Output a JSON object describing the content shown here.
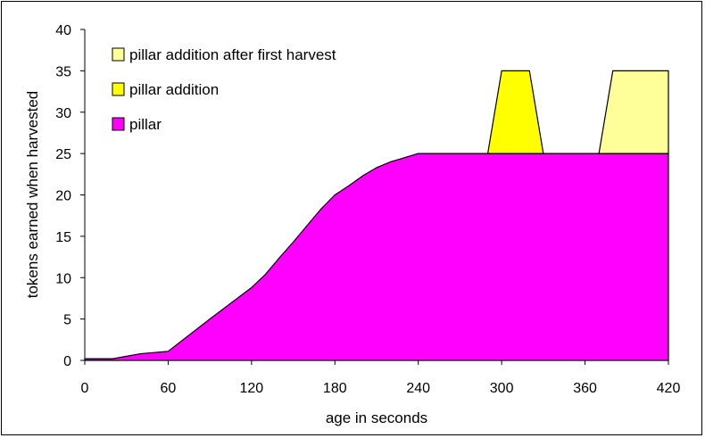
{
  "chart_data": {
    "type": "area",
    "title": "",
    "xlabel": "age in seconds",
    "ylabel": "tokens earned when harvested",
    "xlim": [
      0,
      420
    ],
    "ylim": [
      0,
      40
    ],
    "xticks": [
      0,
      60,
      120,
      180,
      240,
      300,
      360,
      420
    ],
    "yticks": [
      0,
      5,
      10,
      15,
      20,
      25,
      30,
      35,
      40
    ],
    "grid": false,
    "legend_position": "top-left",
    "series": [
      {
        "name": "pillar",
        "color": "#ff00ff",
        "points": [
          [
            0,
            0.2
          ],
          [
            20,
            0.2
          ],
          [
            30,
            0.5
          ],
          [
            40,
            0.8
          ],
          [
            60,
            1.1
          ],
          [
            90,
            5
          ],
          [
            120,
            8.8
          ],
          [
            130,
            10.4
          ],
          [
            140,
            12.4
          ],
          [
            150,
            14.3
          ],
          [
            165,
            17.3
          ],
          [
            170,
            18.3
          ],
          [
            180,
            20
          ],
          [
            190,
            21.1
          ],
          [
            200,
            22.3
          ],
          [
            210,
            23.3
          ],
          [
            220,
            24
          ],
          [
            240,
            25
          ],
          [
            420,
            25
          ]
        ]
      },
      {
        "name": "pillar addition",
        "color": "#ffff00",
        "points": [
          [
            290,
            25
          ],
          [
            300,
            35
          ],
          [
            320,
            35
          ],
          [
            330,
            25
          ]
        ]
      },
      {
        "name": "pillar addition after first harvest",
        "color": "#ffff99",
        "points": [
          [
            370,
            25
          ],
          [
            380,
            35
          ],
          [
            420,
            35
          ],
          [
            420,
            25
          ]
        ]
      }
    ]
  }
}
